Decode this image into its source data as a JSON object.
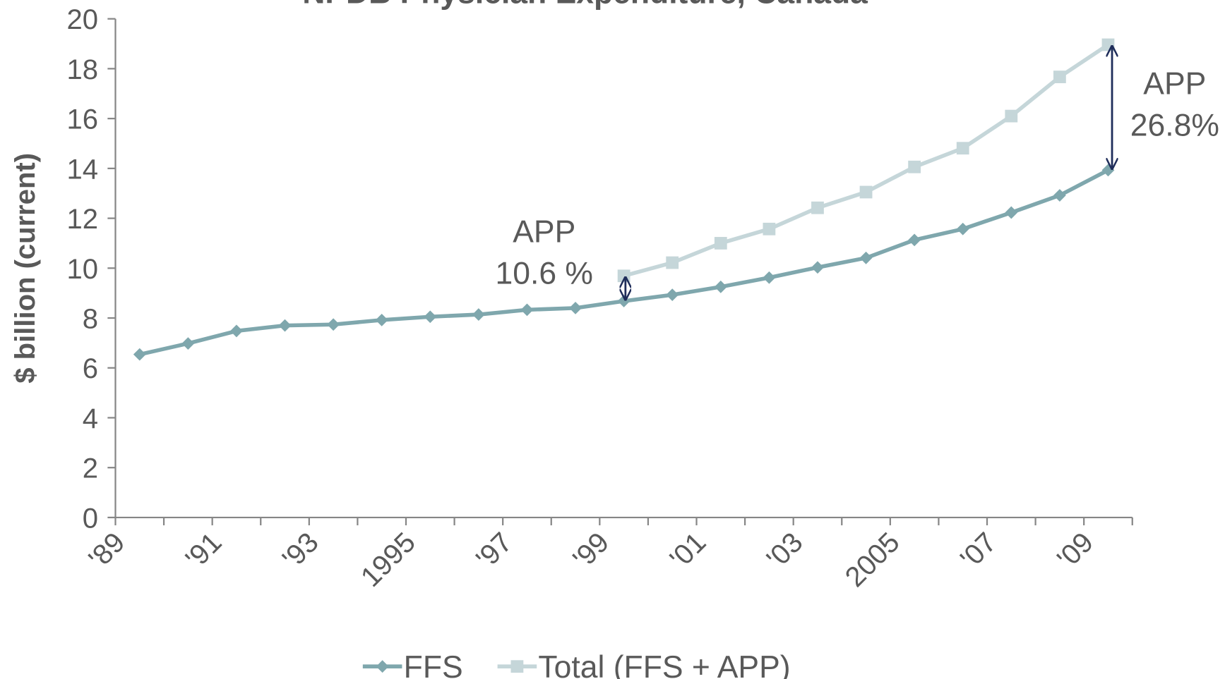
{
  "chart_data": {
    "type": "line",
    "title": "NPDB Physician Expenditure, Canada",
    "y_label": "$ billion (current)",
    "categories": [
      "'89",
      null,
      "'91",
      null,
      "'93",
      null,
      "1995",
      null,
      "'97",
      null,
      "'99",
      null,
      "'01",
      null,
      "'03",
      null,
      "2005",
      null,
      "'07",
      null,
      "'09"
    ],
    "series": [
      {
        "name": "FFS",
        "color": "#7fa7ad",
        "marker": "diamond",
        "values": [
          6.54,
          6.98,
          7.48,
          7.7,
          7.74,
          7.92,
          8.05,
          8.14,
          8.33,
          8.4,
          8.68,
          8.93,
          9.25,
          9.62,
          10.03,
          10.41,
          11.13,
          11.57,
          12.23,
          12.92,
          13.93
        ]
      },
      {
        "name": "Total (FFS + APP)",
        "color": "#c5d6d9",
        "marker": "square",
        "values": [
          null,
          null,
          null,
          null,
          null,
          null,
          null,
          null,
          null,
          null,
          9.69,
          10.22,
          11.0,
          11.57,
          12.42,
          13.05,
          14.06,
          14.81,
          16.1,
          17.67,
          18.96
        ]
      }
    ],
    "annotations": [
      [
        "APP",
        "10.6 %"
      ],
      [
        "APP",
        "26.8%"
      ]
    ],
    "ylim": [
      0,
      20
    ],
    "yticks": [
      0,
      2,
      4,
      6,
      8,
      10,
      12,
      14,
      16,
      18,
      20
    ],
    "legend": "bottom"
  }
}
